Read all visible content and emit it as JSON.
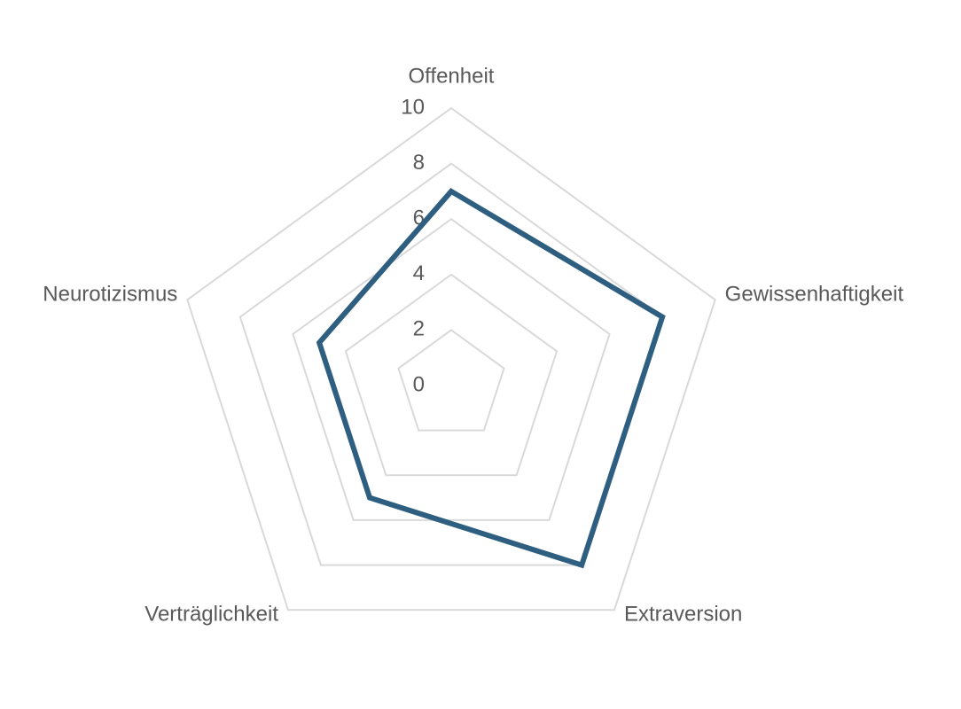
{
  "chart_data": {
    "type": "radar",
    "categories": [
      "Offenheit",
      "Gewissenhaftigkeit",
      "Extraversion",
      "Verträglichkeit",
      "Neurotizismus"
    ],
    "values": [
      7,
      8,
      8,
      5,
      5
    ],
    "color": "#2f5f80",
    "rlim": [
      0,
      10
    ],
    "rticks": [
      0,
      2,
      4,
      6,
      8,
      10
    ],
    "grid": true
  }
}
